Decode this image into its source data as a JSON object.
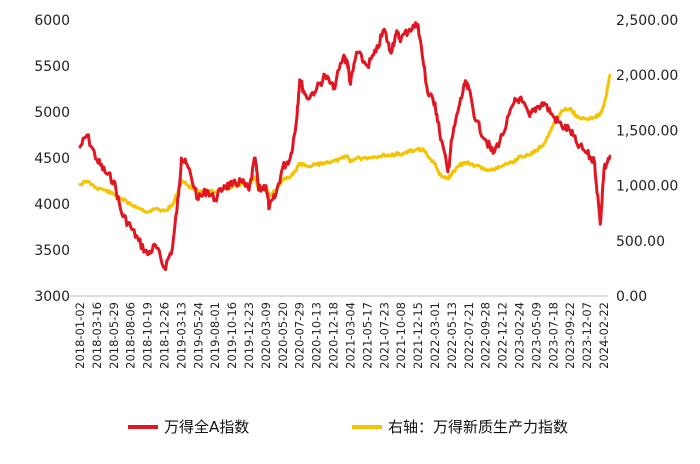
{
  "chart_data": {
    "type": "line",
    "title": "",
    "legend_position": "bottom",
    "grid": false,
    "left_axis": {
      "ylim": [
        3000,
        6000
      ],
      "ticks": [
        "3000",
        "3500",
        "4000",
        "4500",
        "5000",
        "5500",
        "6000"
      ]
    },
    "right_axis": {
      "ylim": [
        0,
        2500
      ],
      "ticks": [
        "0.00",
        "500.00",
        "1,000.00",
        "1,500.00",
        "2,000.00",
        "2,500.00"
      ]
    },
    "x_ticks": [
      "2018-01-02",
      "2018-03-16",
      "2018-05-29",
      "2018-08-06",
      "2018-10-19",
      "2018-12-26",
      "2019-03-13",
      "2019-05-24",
      "2019-08-01",
      "2019-10-16",
      "2019-12-23",
      "2020-03-09",
      "2020-05-20",
      "2020-07-29",
      "2020-10-13",
      "2020-12-18",
      "2021-03-04",
      "2021-05-17",
      "2021-07-23",
      "2021-10-08",
      "2021-12-15",
      "2022-03-01",
      "2022-05-13",
      "2022-07-21",
      "2022-09-28",
      "2022-12-12",
      "2023-02-24",
      "2023-05-09",
      "2023-07-18",
      "2023-09-22",
      "2023-12-07",
      "2024-02-22"
    ],
    "series": [
      {
        "name": "万得全A指数",
        "color": "#e01722",
        "axis": "left",
        "x": [
          "2018-01-02",
          "2018-02-01",
          "2018-03-16",
          "2018-04-20",
          "2018-05-29",
          "2018-06-30",
          "2018-08-06",
          "2018-09-10",
          "2018-10-19",
          "2018-11-20",
          "2018-12-26",
          "2019-01-31",
          "2019-02-28",
          "2019-03-13",
          "2019-04-10",
          "2019-05-24",
          "2019-06-28",
          "2019-08-01",
          "2019-09-10",
          "2019-10-16",
          "2019-11-20",
          "2019-12-23",
          "2020-01-20",
          "2020-02-05",
          "2020-03-09",
          "2020-03-23",
          "2020-04-20",
          "2020-05-20",
          "2020-06-20",
          "2020-07-13",
          "2020-07-29",
          "2020-08-30",
          "2020-10-13",
          "2020-11-15",
          "2020-12-18",
          "2021-01-31",
          "2021-02-18",
          "2021-03-04",
          "2021-03-31",
          "2021-05-17",
          "2021-06-20",
          "2021-07-23",
          "2021-08-20",
          "2021-09-15",
          "2021-10-08",
          "2021-11-10",
          "2021-12-15",
          "2022-01-10",
          "2022-01-28",
          "2022-03-01",
          "2022-03-20",
          "2022-04-26",
          "2022-05-13",
          "2022-06-10",
          "2022-07-05",
          "2022-07-21",
          "2022-08-20",
          "2022-09-28",
          "2022-10-31",
          "2022-12-12",
          "2023-01-31",
          "2023-02-24",
          "2023-04-10",
          "2023-05-09",
          "2023-06-10",
          "2023-07-18",
          "2023-08-20",
          "2023-09-22",
          "2023-10-23",
          "2023-12-07",
          "2024-01-10",
          "2024-02-05",
          "2024-02-22",
          "2024-03-20"
        ],
        "values": [
          4620,
          4750,
          4480,
          4350,
          4250,
          3900,
          3750,
          3600,
          3450,
          3550,
          3300,
          3520,
          4100,
          4500,
          4400,
          4050,
          4150,
          4050,
          4200,
          4200,
          4250,
          4150,
          4500,
          4150,
          4200,
          3950,
          4100,
          4400,
          4500,
          4850,
          5350,
          5150,
          5250,
          5400,
          5250,
          5600,
          5550,
          5300,
          5650,
          5500,
          5650,
          5900,
          5650,
          5850,
          5800,
          5900,
          5950,
          5500,
          5200,
          5100,
          4800,
          4350,
          4700,
          5050,
          5300,
          5250,
          4900,
          4700,
          4550,
          4750,
          5100,
          5150,
          4950,
          5050,
          5100,
          4950,
          4850,
          4800,
          4650,
          4550,
          4450,
          3780,
          4380,
          4520
        ]
      },
      {
        "name": "右轴：万得新质生产力指数",
        "color": "#f5c400",
        "axis": "right",
        "x": [
          "2018-01-02",
          "2018-02-01",
          "2018-03-16",
          "2018-04-20",
          "2018-05-29",
          "2018-06-30",
          "2018-08-06",
          "2018-09-10",
          "2018-10-19",
          "2018-11-20",
          "2018-12-26",
          "2019-01-31",
          "2019-02-28",
          "2019-03-13",
          "2019-04-10",
          "2019-05-24",
          "2019-06-28",
          "2019-08-01",
          "2019-09-10",
          "2019-10-16",
          "2019-11-20",
          "2019-12-23",
          "2020-01-20",
          "2020-02-05",
          "2020-03-09",
          "2020-03-23",
          "2020-04-20",
          "2020-05-20",
          "2020-06-20",
          "2020-07-13",
          "2020-07-29",
          "2020-08-30",
          "2020-10-13",
          "2020-11-15",
          "2020-12-18",
          "2021-01-31",
          "2021-02-18",
          "2021-03-04",
          "2021-03-31",
          "2021-05-17",
          "2021-06-20",
          "2021-07-23",
          "2021-08-20",
          "2021-09-15",
          "2021-10-08",
          "2021-11-10",
          "2021-12-15",
          "2022-01-10",
          "2022-01-28",
          "2022-03-01",
          "2022-03-20",
          "2022-04-26",
          "2022-05-13",
          "2022-06-10",
          "2022-07-05",
          "2022-07-21",
          "2022-08-20",
          "2022-09-28",
          "2022-10-31",
          "2022-12-12",
          "2023-01-31",
          "2023-02-24",
          "2023-04-10",
          "2023-05-09",
          "2023-06-10",
          "2023-07-18",
          "2023-08-20",
          "2023-09-22",
          "2023-10-23",
          "2023-12-07",
          "2024-01-10",
          "2024-02-05",
          "2024-02-22",
          "2024-03-20"
        ],
        "values": [
          1010,
          1040,
          980,
          960,
          920,
          880,
          830,
          800,
          760,
          790,
          770,
          820,
          960,
          1050,
          1000,
          950,
          960,
          940,
          970,
          990,
          1010,
          1000,
          1080,
          960,
          1000,
          910,
          960,
          1050,
          1080,
          1140,
          1200,
          1180,
          1190,
          1210,
          1220,
          1250,
          1270,
          1220,
          1250,
          1240,
          1260,
          1280,
          1270,
          1290,
          1280,
          1310,
          1330,
          1320,
          1260,
          1200,
          1100,
          1060,
          1110,
          1180,
          1210,
          1200,
          1180,
          1150,
          1140,
          1180,
          1220,
          1260,
          1280,
          1320,
          1380,
          1550,
          1680,
          1700,
          1620,
          1600,
          1620,
          1650,
          1720,
          2000
        ]
      }
    ]
  }
}
